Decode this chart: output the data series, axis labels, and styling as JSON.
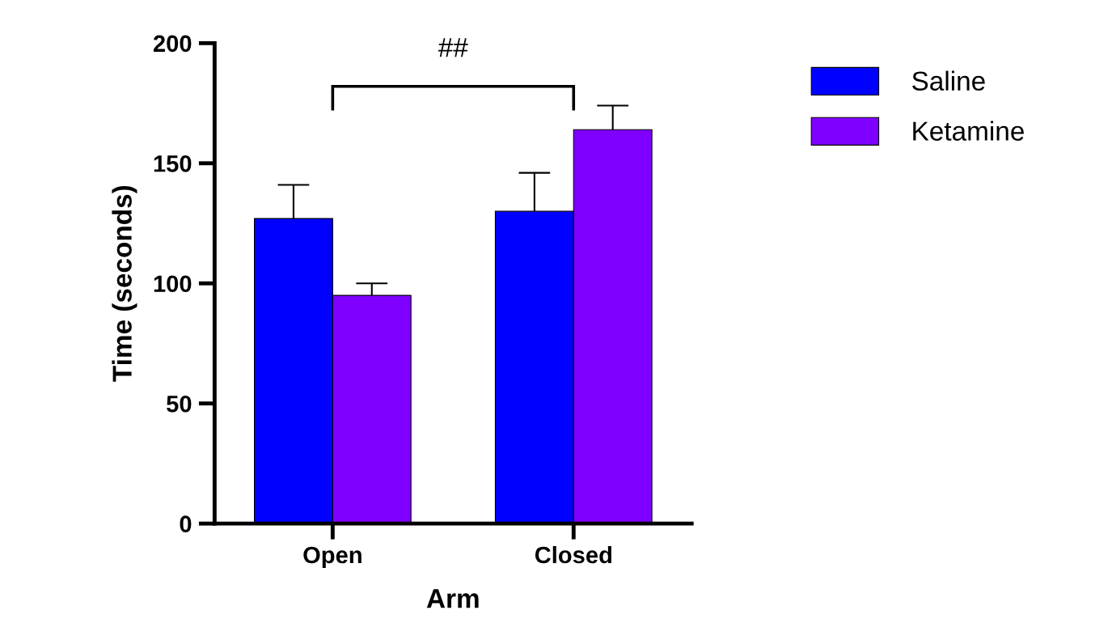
{
  "chart_data": {
    "type": "bar",
    "xlabel": "Arm",
    "ylabel": "Time (seconds)",
    "categories": [
      "Open",
      "Closed"
    ],
    "series": [
      {
        "name": "Saline",
        "color": "#0000ff",
        "values": [
          127,
          130
        ],
        "errors": [
          [
            127,
            141
          ],
          [
            130,
            146
          ]
        ]
      },
      {
        "name": "Ketamine",
        "color": "#8000ff",
        "values": [
          95,
          164
        ],
        "errors": [
          [
            95,
            100
          ],
          [
            164,
            174
          ]
        ]
      }
    ],
    "ylim": [
      0,
      200
    ],
    "yticks": [
      0,
      50,
      100,
      150,
      200
    ],
    "grid": false,
    "legend": "top right",
    "annotations": [
      "##"
    ]
  }
}
